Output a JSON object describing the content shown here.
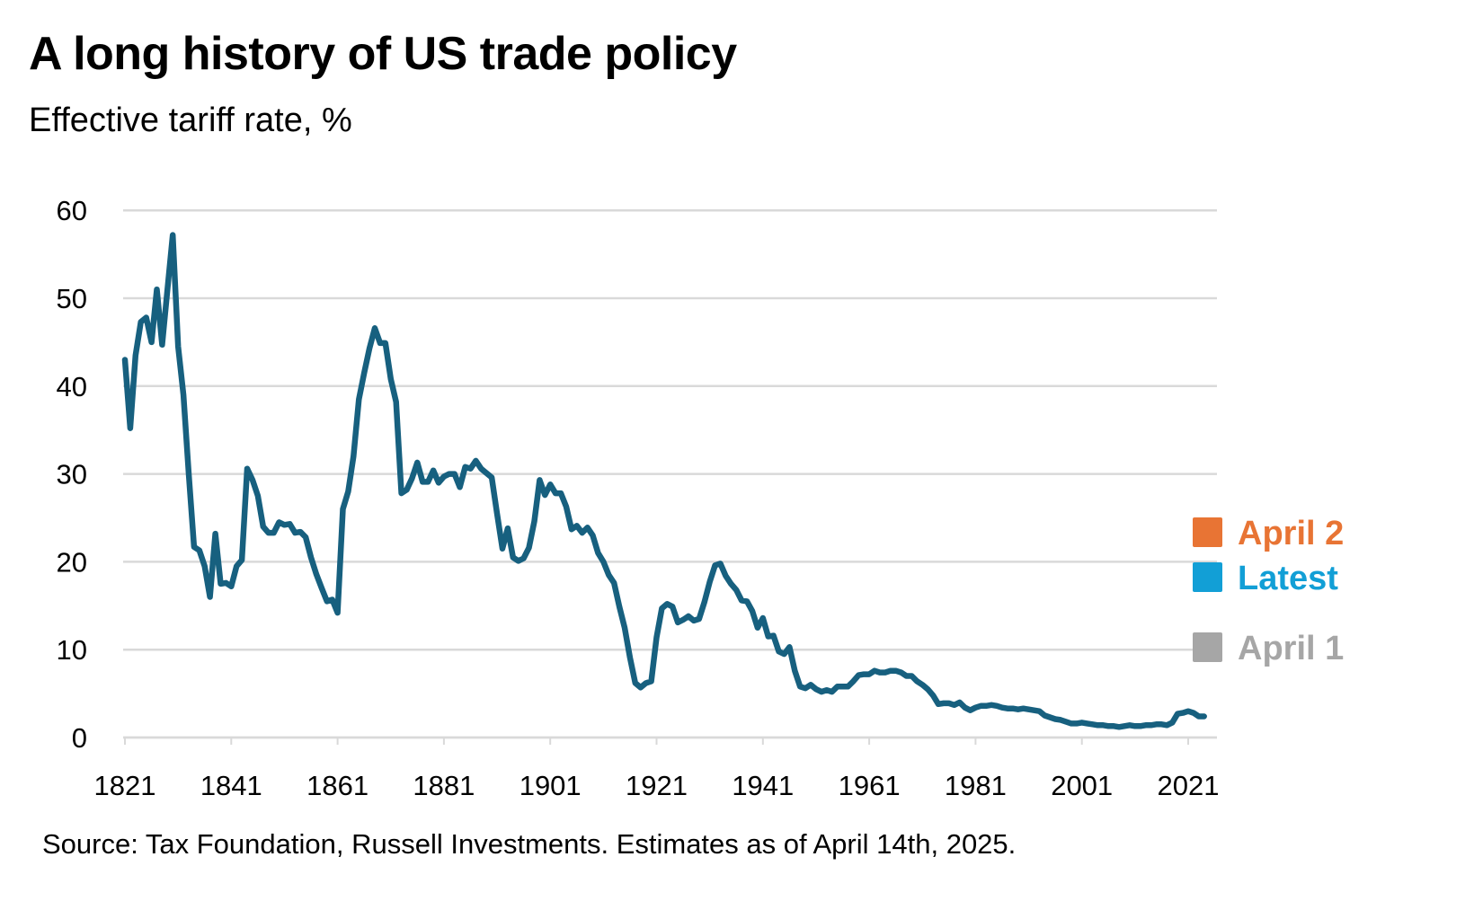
{
  "chart_data": {
    "type": "line",
    "title": "A long history of US trade policy",
    "subtitle": "Effective tariff rate, %",
    "source": "Source: Tax Foundation, Russell Investments. Estimates as of April 14th, 2025.",
    "xlabel": "",
    "ylabel": "",
    "xlim": [
      1821,
      2024
    ],
    "ylim": [
      0,
      60
    ],
    "grid": true,
    "x_ticks": [
      "1821",
      "1841",
      "1861",
      "1881",
      "1901",
      "1921",
      "1941",
      "1961",
      "1981",
      "2001",
      "2021"
    ],
    "y_ticks": [
      "0",
      "10",
      "20",
      "30",
      "40",
      "50",
      "60"
    ],
    "line_color": "#17607f",
    "series": [
      {
        "x": [
          1821,
          1822,
          1823,
          1824,
          1825,
          1826,
          1827,
          1828,
          1829,
          1830,
          1831,
          1832,
          1833,
          1834,
          1835,
          1836,
          1837,
          1838,
          1839,
          1840,
          1841,
          1842,
          1843,
          1844,
          1845,
          1846,
          1847,
          1848,
          1849,
          1850,
          1851,
          1852,
          1853,
          1854,
          1855,
          1856,
          1857,
          1858,
          1859,
          1860,
          1861,
          1862,
          1863,
          1864,
          1865,
          1866,
          1867,
          1868,
          1869,
          1870,
          1871,
          1872,
          1873,
          1874,
          1875,
          1876,
          1877,
          1878,
          1879,
          1880,
          1881,
          1882,
          1883,
          1884,
          1885,
          1886,
          1887,
          1888,
          1889,
          1890,
          1891,
          1892,
          1893,
          1894,
          1895,
          1896,
          1897,
          1898,
          1899,
          1900,
          1901,
          1902,
          1903,
          1904,
          1905,
          1906,
          1907,
          1908,
          1909,
          1910,
          1911,
          1912,
          1913,
          1914,
          1915,
          1916,
          1917,
          1918,
          1919,
          1920,
          1921,
          1922,
          1923,
          1924,
          1925,
          1926,
          1927,
          1928,
          1929,
          1930,
          1931,
          1932,
          1933,
          1934,
          1935,
          1936,
          1937,
          1938,
          1939,
          1940,
          1941,
          1942,
          1943,
          1944,
          1945,
          1946,
          1947,
          1948,
          1949,
          1950,
          1951,
          1952,
          1953,
          1954,
          1955,
          1956,
          1957,
          1958,
          1959,
          1960,
          1961,
          1962,
          1963,
          1964,
          1965,
          1966,
          1967,
          1968,
          1969,
          1970,
          1971,
          1972,
          1973,
          1974,
          1975,
          1976,
          1977,
          1978,
          1979,
          1980,
          1981,
          1982,
          1983,
          1984,
          1985,
          1986,
          1987,
          1988,
          1989,
          1990,
          1991,
          1992,
          1993,
          1994,
          1995,
          1996,
          1997,
          1998,
          1999,
          2000,
          2001,
          2002,
          2003,
          2004,
          2005,
          2006,
          2007,
          2008,
          2009,
          2010,
          2011,
          2012,
          2013,
          2014,
          2015,
          2016,
          2017,
          2018,
          2019,
          2020,
          2021,
          2022,
          2023,
          2024
        ],
        "y": [
          43,
          35.2,
          43.5,
          47.3,
          47.8,
          45,
          51,
          44.7,
          51,
          57.2,
          44.5,
          39,
          30,
          21.7,
          21.3,
          19.5,
          16,
          23.2,
          17.5,
          17.6,
          17.2,
          19.5,
          20.2,
          30.6,
          29.3,
          27.5,
          24,
          23.3,
          23.3,
          24.5,
          24.2,
          24.3,
          23.3,
          23.4,
          22.8,
          20.5,
          18.6,
          17,
          15.5,
          15.7,
          14.2,
          26,
          28,
          32,
          38.5,
          41.5,
          44.3,
          46.6,
          44.9,
          44.9,
          40.8,
          38.2,
          27.8,
          28.2,
          29.5,
          31.3,
          29.1,
          29.1,
          30.4,
          29,
          29.7,
          30,
          30,
          28.5,
          30.8,
          30.6,
          31.5,
          30.6,
          30.1,
          29.6,
          25.5,
          21.5,
          23.8,
          20.5,
          20.1,
          20.4,
          21.6,
          24.6,
          29.3,
          27.6,
          28.8,
          27.8,
          27.8,
          26.3,
          23.7,
          24.1,
          23.3,
          23.9,
          23,
          21,
          20,
          18.5,
          17.6,
          14.9,
          12.5,
          9.1,
          6.2,
          5.7,
          6.2,
          6.4,
          11.4,
          14.7,
          15.2,
          14.9,
          13.1,
          13.4,
          13.8,
          13.3,
          13.5,
          15.4,
          17.7,
          19.6,
          19.8,
          18.4,
          17.5,
          16.8,
          15.6,
          15.5,
          14.4,
          12.5,
          13.6,
          11.5,
          11.6,
          9.8,
          9.5,
          10.3,
          7.6,
          5.8,
          5.6,
          6,
          5.5,
          5.2,
          5.4,
          5.2,
          5.8,
          5.8,
          5.8,
          6.4,
          7.1,
          7.2,
          7.2,
          7.6,
          7.4,
          7.4,
          7.6,
          7.6,
          7.4,
          7,
          7,
          6.4,
          6,
          5.5,
          4.8,
          3.8,
          3.9,
          3.9,
          3.7,
          4,
          3.4,
          3.1,
          3.4,
          3.6,
          3.6,
          3.7,
          3.6,
          3.4,
          3.3,
          3.3,
          3.2,
          3.3,
          3.2,
          3.1,
          3,
          2.5,
          2.3,
          2.1,
          2,
          1.8,
          1.6,
          1.6,
          1.7,
          1.6,
          1.5,
          1.4,
          1.4,
          1.3,
          1.3,
          1.2,
          1.3,
          1.4,
          1.3,
          1.3,
          1.4,
          1.4,
          1.5,
          1.5,
          1.4,
          1.7,
          2.7,
          2.8,
          3,
          2.8,
          2.4,
          2.4
        ]
      }
    ],
    "markers": [
      {
        "label": "April 2",
        "value": 22.5,
        "color": "#e87434"
      },
      {
        "label": "Latest",
        "value": 17.8,
        "color": "#129fd6"
      },
      {
        "label": "April 1",
        "value": 10.2,
        "color": "#a6a6a6"
      }
    ]
  }
}
